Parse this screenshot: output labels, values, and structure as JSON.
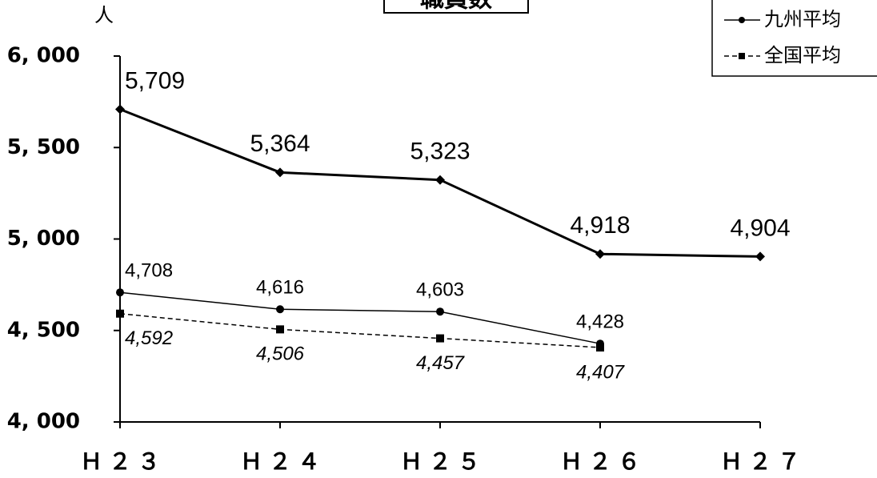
{
  "chart_data": {
    "type": "line",
    "title": "職員数",
    "y_label": "人",
    "categories": [
      "Ｈ２３",
      "Ｈ２４",
      "Ｈ２５",
      "Ｈ２６",
      "Ｈ２７"
    ],
    "series": [
      {
        "color": "#000000",
        "marker": "diamond",
        "line_width": 3,
        "dashed": false,
        "values": [
          5709,
          5364,
          5323,
          4918,
          4904
        ],
        "value_labels": [
          "5,709",
          "5,364",
          "5,323",
          "4,918",
          "4,904"
        ]
      },
      {
        "name": "九州平均",
        "color": "#000000",
        "marker": "circle",
        "line_width": 1.5,
        "dashed": false,
        "values": [
          4708,
          4616,
          4603,
          4428,
          null
        ],
        "value_labels": [
          "4,708",
          "4,616",
          "4,603",
          "4,428",
          null
        ]
      },
      {
        "name": "全国平均",
        "color": "#000000",
        "marker": "square",
        "line_width": 1.5,
        "dashed": true,
        "values": [
          4592,
          4506,
          4457,
          4407,
          null
        ],
        "value_labels": [
          "4,592",
          "4,506",
          "4,457",
          "4,407",
          null
        ]
      }
    ],
    "ylim": [
      4000,
      6000
    ],
    "yticks": [
      {
        "value": 4000,
        "label": "4, 000"
      },
      {
        "value": 4500,
        "label": "4, 500"
      },
      {
        "value": 5000,
        "label": "5, 000"
      },
      {
        "value": 5500,
        "label": "5, 500"
      },
      {
        "value": 6000,
        "label": "6, 000"
      }
    ],
    "legend": "top-right"
  }
}
